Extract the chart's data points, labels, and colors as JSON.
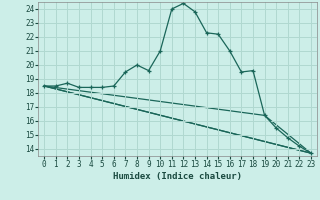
{
  "xlabel": "Humidex (Indice chaleur)",
  "background_color": "#cceee8",
  "grid_color": "#b0d8d0",
  "line_color": "#1a6659",
  "xlim": [
    -0.5,
    23.5
  ],
  "ylim": [
    13.5,
    24.5
  ],
  "yticks": [
    14,
    15,
    16,
    17,
    18,
    19,
    20,
    21,
    22,
    23,
    24
  ],
  "xticks": [
    0,
    1,
    2,
    3,
    4,
    5,
    6,
    7,
    8,
    9,
    10,
    11,
    12,
    13,
    14,
    15,
    16,
    17,
    18,
    19,
    20,
    21,
    22,
    23
  ],
  "main_x": [
    0,
    1,
    2,
    3,
    4,
    5,
    6,
    7,
    8,
    9,
    10,
    11,
    12,
    13,
    14,
    15,
    16,
    17,
    18,
    19,
    20,
    21,
    22,
    23
  ],
  "main_y": [
    18.5,
    18.5,
    18.7,
    18.4,
    18.4,
    18.4,
    18.5,
    19.5,
    20.0,
    19.6,
    21.0,
    24.0,
    24.4,
    23.8,
    22.3,
    22.2,
    21.0,
    19.5,
    19.6,
    16.4,
    15.5,
    14.8,
    14.2,
    13.7
  ],
  "flat_lines": [
    {
      "x": [
        0,
        23
      ],
      "y": [
        18.5,
        13.7
      ]
    },
    {
      "x": [
        0,
        23
      ],
      "y": [
        18.5,
        13.7
      ]
    },
    {
      "x": [
        0,
        19,
        23
      ],
      "y": [
        18.5,
        16.4,
        13.7
      ]
    }
  ]
}
